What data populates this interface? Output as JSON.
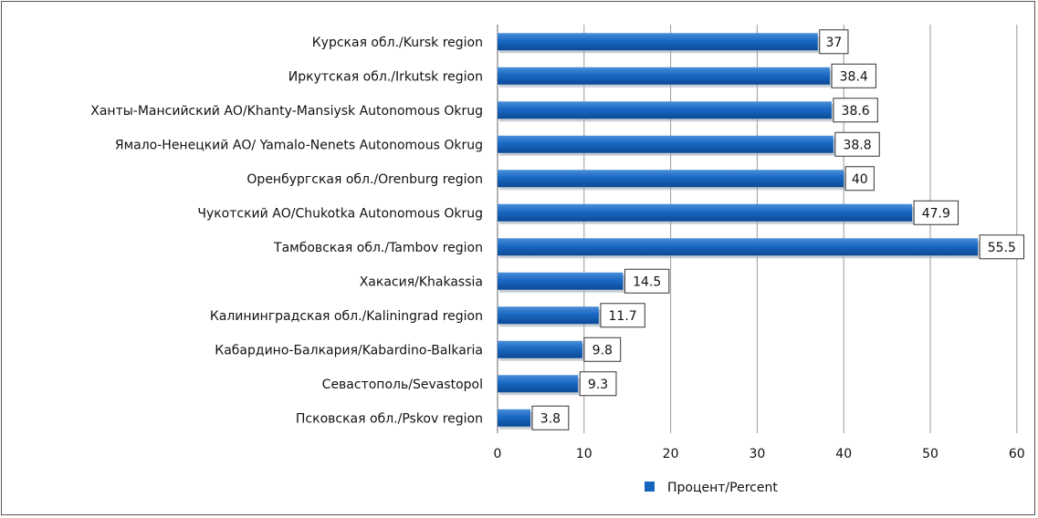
{
  "chart_data": {
    "type": "bar",
    "orientation": "horizontal",
    "categories": [
      "Курская обл./Kursk region",
      "Иркутская обл./Irkutsk region",
      "Ханты-Мансийский АО/Khanty-Mansiysk Autonomous Okrug",
      "Ямало-Ненецкий АО/ Yamalo-Nenets Autonomous Okrug",
      "Оренбургская обл./Orenburg region",
      "Чукотский АО/Chukotka Autonomous Okrug",
      "Тамбовская обл./Tambov region",
      "Хакасия/Khakassia",
      "Калининградская обл./Kaliningrad region",
      "Кабардино-Балкария/Kabardino-Balkaria",
      "Севастополь/Sevastopol",
      "Псковская обл./Pskov region"
    ],
    "series": [
      {
        "name": "Процент/Percent",
        "values": [
          37,
          38.4,
          38.6,
          38.8,
          40,
          47.9,
          55.5,
          14.5,
          11.7,
          9.8,
          9.3,
          3.8
        ],
        "labels": [
          "37",
          "38.4",
          "38.6",
          "38.8",
          "40",
          "47.9",
          "55.5",
          "14.5",
          "11.7",
          "9.8",
          "9.3",
          "3.8"
        ],
        "color": "#1565c0"
      }
    ],
    "xlim": [
      0,
      60
    ],
    "xticks": [
      "0",
      "10",
      "20",
      "30",
      "40",
      "50",
      "60"
    ],
    "grid": true,
    "legend": "bottom-center"
  }
}
